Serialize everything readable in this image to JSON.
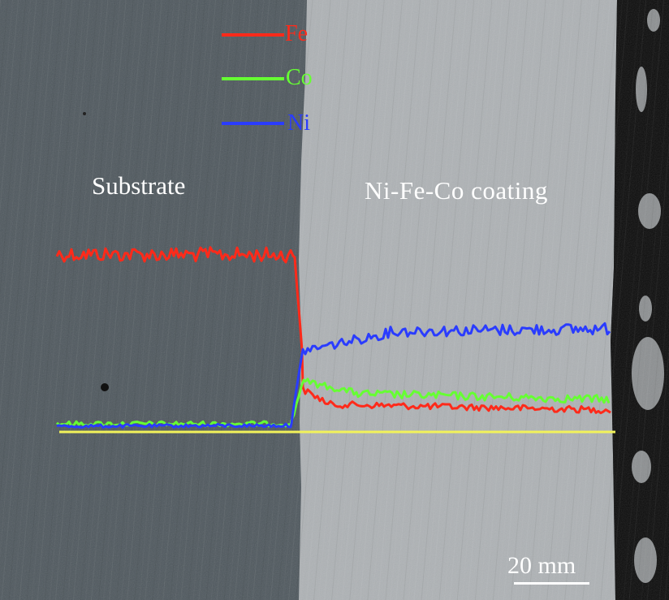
{
  "labels": {
    "substrate": "Substrate",
    "coating": "Ni-Fe-Co coating"
  },
  "legend": [
    {
      "name": "Fe",
      "color": "#ff2a1a"
    },
    {
      "name": "Co",
      "color": "#66ff33"
    },
    {
      "name": "Ni",
      "color": "#2a3cff"
    }
  ],
  "scale_bar": {
    "label": "20 mm"
  },
  "colors": {
    "substrate": "#4f585e",
    "coating": "#aeb2b5",
    "edge": "#0a0a0a",
    "scan_line": "#f2f25a"
  }
}
